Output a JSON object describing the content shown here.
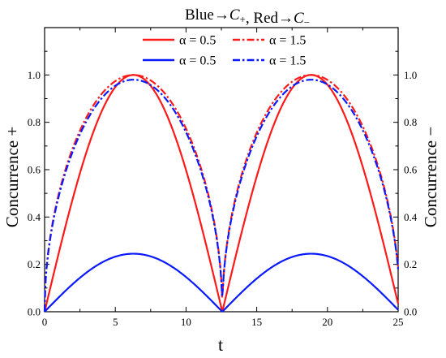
{
  "chart_data": {
    "type": "line",
    "title": {
      "parts": [
        {
          "text": "Blue→"
        },
        {
          "text": "C",
          "italic": true
        },
        {
          "text": "+",
          "sub": true
        },
        {
          "text": ", Red→"
        },
        {
          "text": "C",
          "italic": true
        },
        {
          "text": "−",
          "sub": true
        }
      ]
    },
    "xlabel": "t",
    "ylabel_left": "Concurrence +",
    "ylabel_right": "Concurrence −",
    "xlim": [
      0,
      25
    ],
    "ylim": [
      0,
      1.2
    ],
    "xticks": [
      0,
      5,
      10,
      15,
      20,
      25
    ],
    "xtick_labels": [
      "0",
      "5",
      "10",
      "15",
      "20",
      "25"
    ],
    "yticks": [
      0,
      0.2,
      0.4,
      0.6,
      0.8,
      1.0
    ],
    "ytick_labels": [
      "0.0",
      "0.2",
      "0.4",
      "0.6",
      "0.8",
      "1.0"
    ],
    "grid": false,
    "legend_position": "top",
    "period": 12.566,
    "series": [
      {
        "label": "α = 0.5",
        "color": "#ff1a1a",
        "dash": "solid",
        "peak": 1.0,
        "shape": "sine"
      },
      {
        "label": "α = 1.5",
        "color": "#ff1a1a",
        "dash": "dashdot",
        "peak": 1.0,
        "shape": "sqrt-sine"
      },
      {
        "label": "α = 0.5",
        "color": "#0a1aff",
        "dash": "solid",
        "peak": 0.245,
        "shape": "sine"
      },
      {
        "label": "α = 1.5",
        "color": "#0a1aff",
        "dash": "dashdot",
        "peak": 0.98,
        "shape": "sqrt-sine"
      }
    ]
  }
}
